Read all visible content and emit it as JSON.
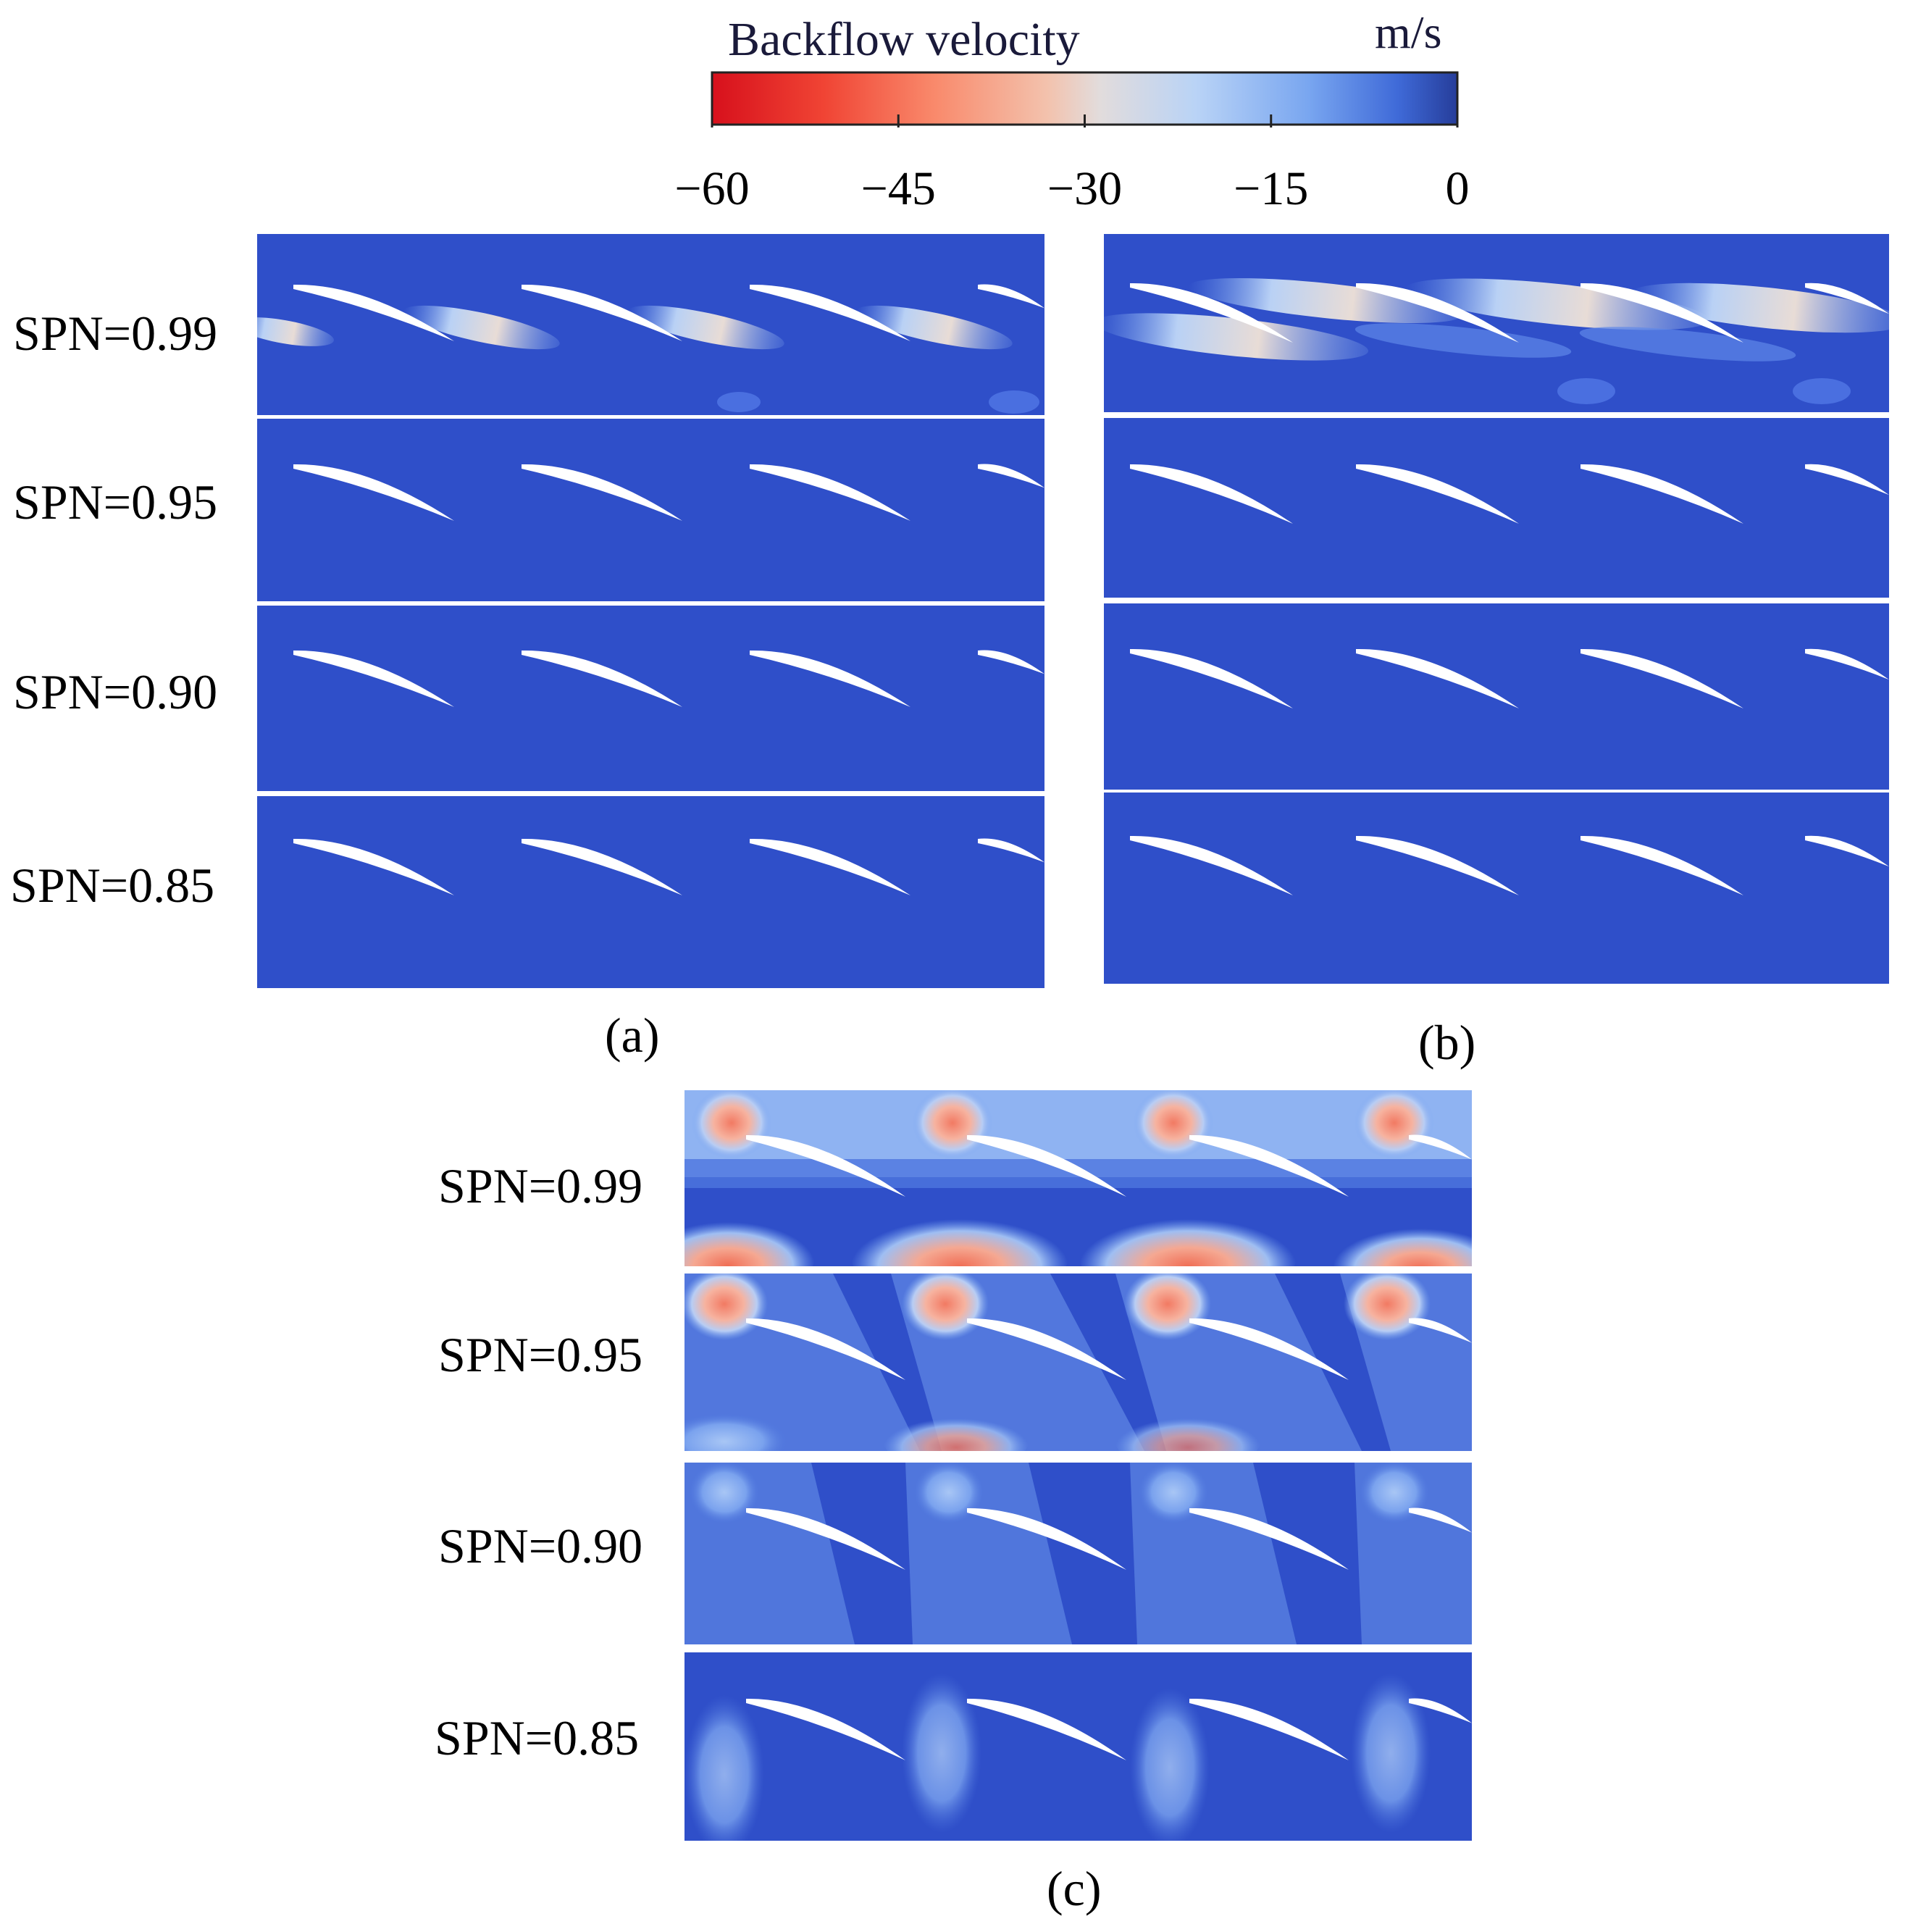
{
  "colorbar": {
    "title": "Backflow velocity",
    "unit": "m/s",
    "ticks": [
      -60,
      -45,
      -30,
      -15,
      0
    ],
    "tick_labels": [
      "−60",
      "−45",
      "−30",
      "−15",
      "0"
    ],
    "range": [
      -60,
      0
    ],
    "colors": [
      "#d7101c",
      "#f6604c",
      "#f9a98a",
      "#e8d6cf",
      "#b9d4f7",
      "#6d9ef0",
      "#3256c8",
      "#2a3f9c"
    ]
  },
  "background_color": "#2f4fc9",
  "panels": [
    {
      "caption": "(a)",
      "rows": [
        {
          "label": "SPN=0.99"
        },
        {
          "label": "SPN=0.95"
        },
        {
          "label": "SPN=0.90"
        },
        {
          "label": "SPN=0.85"
        }
      ]
    },
    {
      "caption": "(b)",
      "rows": [
        {
          "label": ""
        },
        {
          "label": ""
        },
        {
          "label": ""
        },
        {
          "label": ""
        }
      ]
    },
    {
      "caption": "(c)",
      "rows": [
        {
          "label": "SPN=0.99"
        },
        {
          "label": "SPN=0.95"
        },
        {
          "label": "SPN=0.90"
        },
        {
          "label": "SPN=0.85"
        }
      ]
    }
  ]
}
